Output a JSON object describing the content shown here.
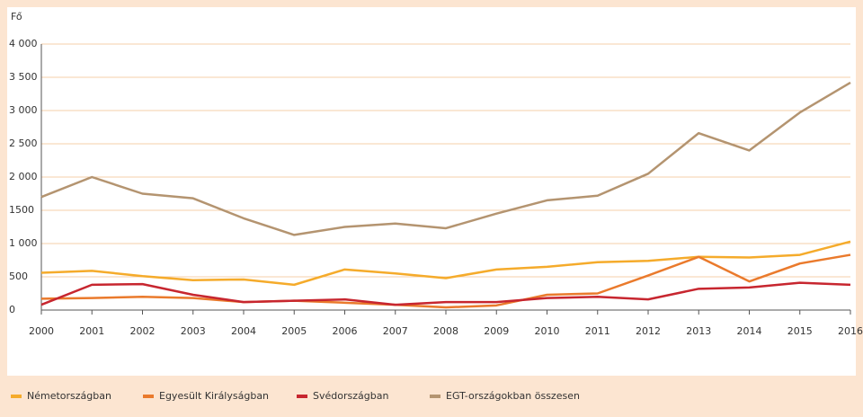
{
  "chart_data": {
    "type": "line",
    "y_label": "Fő",
    "categories": [
      "2000",
      "2001",
      "2002",
      "2003",
      "2004",
      "2005",
      "2006",
      "2007",
      "2008",
      "2009",
      "2010",
      "2011",
      "2012",
      "2013",
      "2014",
      "2015",
      "2016"
    ],
    "series": [
      {
        "name": "Németországban",
        "color": "#f5ab2b",
        "values": [
          560,
          590,
          510,
          450,
          460,
          380,
          610,
          550,
          480,
          610,
          650,
          720,
          740,
          800,
          790,
          830,
          1030
        ]
      },
      {
        "name": "Egyesült Királyságban",
        "color": "#ea7a2c",
        "values": [
          170,
          180,
          200,
          180,
          120,
          140,
          110,
          80,
          40,
          70,
          230,
          250,
          520,
          800,
          430,
          700,
          830
        ]
      },
      {
        "name": "Svédországban",
        "color": "#c7262f",
        "values": [
          80,
          380,
          390,
          230,
          120,
          140,
          160,
          80,
          120,
          120,
          180,
          200,
          160,
          320,
          340,
          410,
          380
        ]
      },
      {
        "name": "EGT-országokban összesen",
        "color": "#b49470",
        "values": [
          1700,
          2000,
          1750,
          1680,
          1380,
          1130,
          1250,
          1300,
          1230,
          1450,
          1650,
          1720,
          2050,
          2660,
          2400,
          2970,
          3420
        ]
      }
    ],
    "ylim": [
      0,
      4000
    ],
    "yticks": [
      0,
      500,
      {
        "value": 1000,
        "label": "1 000"
      },
      1500,
      {
        "value": 2000,
        "label": "2 000"
      },
      {
        "value": 2500,
        "label": "2 500"
      },
      {
        "value": 3000,
        "label": "3 000"
      },
      {
        "value": 3500,
        "label": "3 500"
      },
      {
        "value": 4000,
        "label": "4 000"
      }
    ],
    "grid": true,
    "legend": "bottom"
  }
}
